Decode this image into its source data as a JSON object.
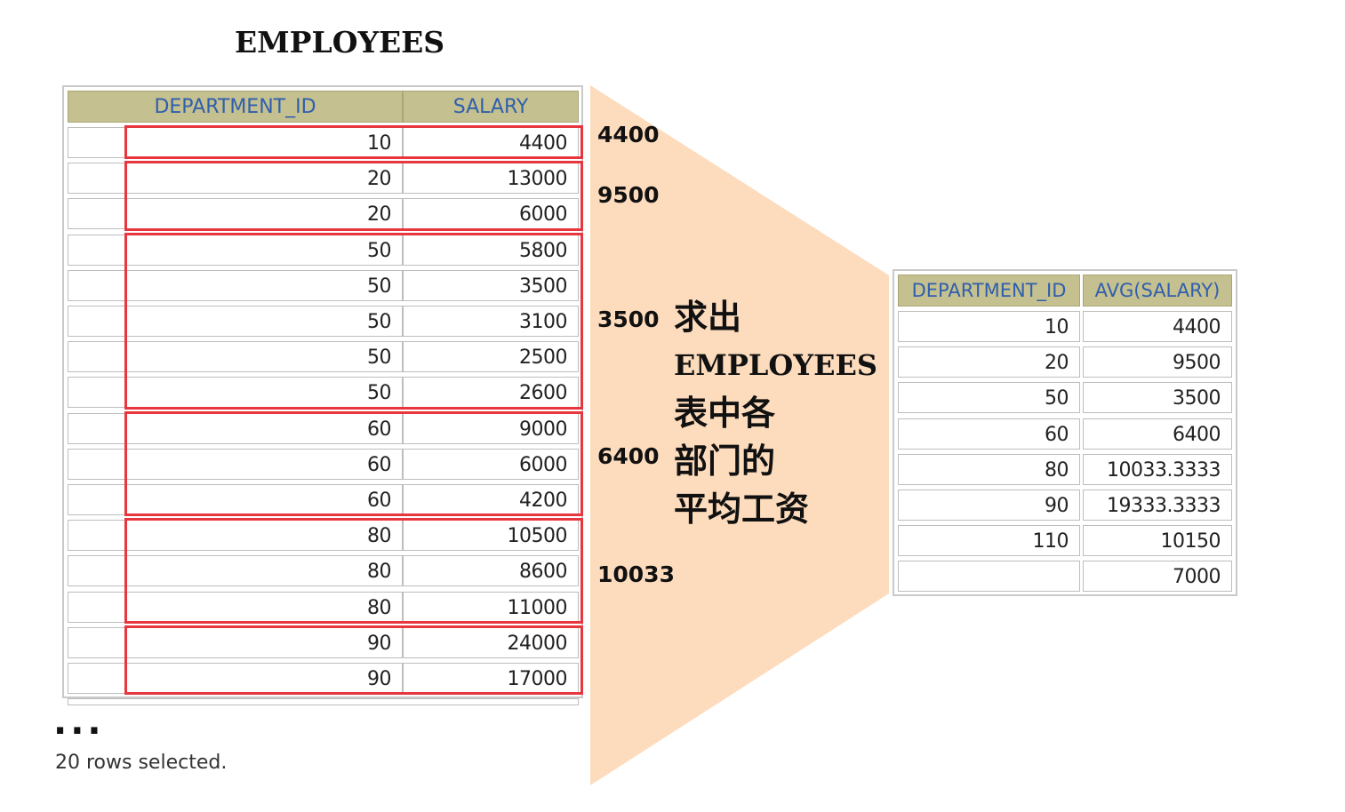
{
  "title": "EMPLOYEES",
  "left_table": {
    "headers": [
      "DEPARTMENT_ID",
      "SALARY"
    ],
    "rows": [
      [
        "10",
        "4400"
      ],
      [
        "20",
        "13000"
      ],
      [
        "20",
        "6000"
      ],
      [
        "50",
        "5800"
      ],
      [
        "50",
        "3500"
      ],
      [
        "50",
        "3100"
      ],
      [
        "50",
        "2500"
      ],
      [
        "50",
        "2600"
      ],
      [
        "60",
        "9000"
      ],
      [
        "60",
        "6000"
      ],
      [
        "60",
        "4200"
      ],
      [
        "80",
        "10500"
      ],
      [
        "80",
        "8600"
      ],
      [
        "80",
        "11000"
      ],
      [
        "90",
        "24000"
      ],
      [
        "90",
        "17000"
      ]
    ]
  },
  "group_averages": [
    "4400",
    "9500",
    "3500",
    "6400",
    "10033"
  ],
  "description": {
    "line1": "求出",
    "line2": "EMPLOYEES",
    "line3": "表中各",
    "line4": "部门的",
    "line5": "平均工资"
  },
  "right_table": {
    "headers": [
      "DEPARTMENT_ID",
      "AVG(SALARY)"
    ],
    "rows": [
      [
        "10",
        "4400"
      ],
      [
        "20",
        "9500"
      ],
      [
        "50",
        "3500"
      ],
      [
        "60",
        "6400"
      ],
      [
        "80",
        "10033.3333"
      ],
      [
        "90",
        "19333.3333"
      ],
      [
        "110",
        "10150"
      ],
      [
        "",
        "7000"
      ]
    ]
  },
  "ellipsis": "...",
  "footer": "20 rows selected.",
  "colors": {
    "header_bg": "#c5c08f",
    "header_text": "#2f5fae",
    "group_box": "#e8363f",
    "funnel": "#fddcbd"
  }
}
